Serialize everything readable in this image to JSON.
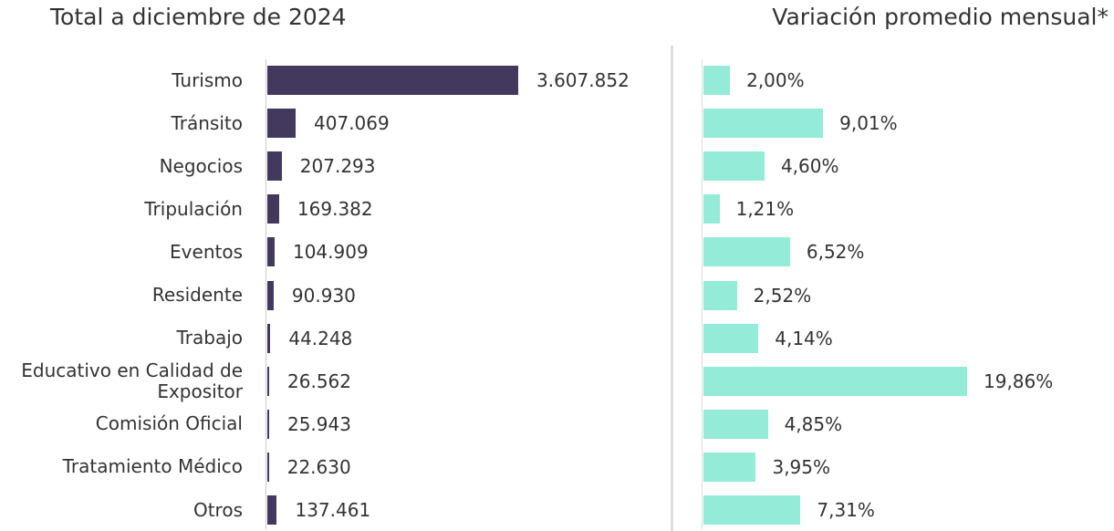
{
  "chart_data": [
    {
      "type": "bar",
      "orientation": "horizontal",
      "title": "Total a diciembre de 2024",
      "color": "#43395f",
      "categories": [
        "Turismo",
        "Tránsito",
        "Negocios",
        "Tripulación",
        "Eventos",
        "Residente",
        "Trabajo",
        "Educativo en Calidad de Expositor",
        "Comisión Oficial",
        "Tratamiento Médico",
        "Otros"
      ],
      "values": [
        3607852,
        407069,
        207293,
        169382,
        104909,
        90930,
        44248,
        26562,
        25943,
        22630,
        137461
      ],
      "value_labels": [
        "3.607.852",
        "407.069",
        "207.293",
        "169.382",
        "104.909",
        "90.930",
        "44.248",
        "26.562",
        "25.943",
        "22.630",
        "137.461"
      ]
    },
    {
      "type": "bar",
      "orientation": "horizontal",
      "title": "Variación promedio mensual*",
      "color": "#94ecd8",
      "categories": [
        "Turismo",
        "Tránsito",
        "Negocios",
        "Tripulación",
        "Eventos",
        "Residente",
        "Trabajo",
        "Educativo en Calidad de Expositor",
        "Comisión Oficial",
        "Tratamiento Médico",
        "Otros"
      ],
      "values": [
        2.0,
        9.01,
        4.6,
        1.21,
        6.52,
        2.52,
        4.14,
        19.86,
        4.85,
        3.95,
        7.31
      ],
      "value_labels": [
        "2,00%",
        "9,01%",
        "4,60%",
        "1,21%",
        "6,52%",
        "2,52%",
        "4,14%",
        "19,86%",
        "4,85%",
        "3,95%",
        "7,31%"
      ]
    }
  ]
}
